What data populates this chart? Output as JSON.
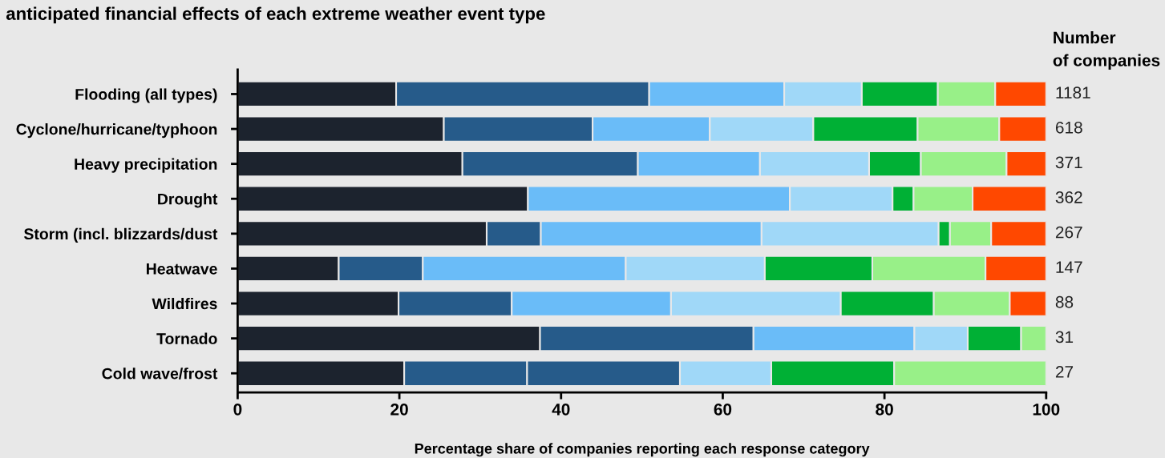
{
  "chart_data": {
    "type": "bar",
    "orientation": "horizontal",
    "stacked": true,
    "title": "anticipated financial effects of each extreme weather event type",
    "xlabel": "Percentage share of companies reporting each response category",
    "categories": [
      "Flooding (all types)",
      "Cyclone/hurricane/typhoon",
      "Heavy precipitation",
      "Drought",
      "Storm (incl. blizzards/dust",
      "Heatwave",
      "Wildfires",
      "Tornado",
      "Cold wave/frost"
    ],
    "series": [
      {
        "color": "#1c232e",
        "values": [
          19.6,
          25.5,
          27.8,
          35.9,
          30.8,
          12.5,
          19.9,
          37.4,
          20.6
        ]
      },
      {
        "color": "#265b8a",
        "values": [
          31.3,
          18.4,
          21.7,
          0,
          6.7,
          10.4,
          14.0,
          26.4,
          15.2
        ]
      },
      {
        "color": "#6abcf8",
        "colors": [
          "#6abcf8",
          "#6abcf8",
          "#6abcf8",
          "#6abcf8",
          "#6abcf8",
          "#6abcf8",
          "#6abcf8",
          "#6abcf8",
          "#265b8a"
        ],
        "values": [
          16.7,
          14.5,
          15.1,
          32.4,
          27.3,
          25.1,
          19.7,
          19.9,
          18.9
        ]
      },
      {
        "color": "#a0d8f8",
        "values": [
          9.6,
          12.8,
          13.5,
          12.7,
          21.9,
          17.2,
          21.0,
          6.6,
          11.3
        ]
      },
      {
        "color": "#00b035",
        "values": [
          9.4,
          12.9,
          6.4,
          2.6,
          1.4,
          13.3,
          11.5,
          6.6,
          15.2
        ]
      },
      {
        "color": "#98f088",
        "values": [
          7.1,
          10.1,
          10.6,
          7.3,
          5.1,
          14.0,
          9.4,
          3.1,
          18.8
        ]
      },
      {
        "color": "#ff4800",
        "values": [
          6.3,
          5.8,
          4.9,
          9.1,
          6.8,
          7.5,
          4.5,
          0,
          0
        ]
      }
    ],
    "annotations": [
      "Number\nof companies",
      "1181",
      "618",
      "371",
      "362",
      "267",
      "147",
      "88",
      "31",
      "27"
    ],
    "xlim": [
      0,
      100
    ],
    "xticks": [
      0,
      20,
      40,
      60,
      80,
      100
    ],
    "grid": false,
    "legend": false
  }
}
